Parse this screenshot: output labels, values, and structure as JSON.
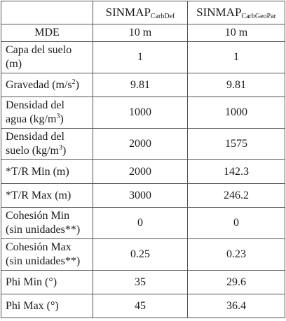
{
  "header": {
    "param": "",
    "col1_main": "SINMAP",
    "col1_sub": "CarbDef",
    "col2_main": "SINMAP",
    "col2_sub": "CarbGeoPar"
  },
  "rows": [
    {
      "label": "MDE",
      "v1": "10 m",
      "v2": "10 m"
    },
    {
      "label": "Capa del suelo (m)",
      "v1": "1",
      "v2": "1"
    },
    {
      "label_pre": "Gravedad (m/s",
      "label_sup": "2",
      "label_post": ")",
      "v1": "9.81",
      "v2": "9.81"
    },
    {
      "label_pre": "Densidad del agua (kg/m",
      "label_sup": "3",
      "label_post": ")",
      "v1": "1000",
      "v2": "1000"
    },
    {
      "label_pre": "Densidad del suelo (kg/m",
      "label_sup": "3",
      "label_post": ")",
      "v1": "2000",
      "v2": "1575"
    },
    {
      "label": "*T/R Min (m)",
      "v1": "2000",
      "v2": "142.3"
    },
    {
      "label": "*T/R Max (m)",
      "v1": "3000",
      "v2": "246.2"
    },
    {
      "label": "Cohesión Min (sin unidades**)",
      "v1": "0",
      "v2": "0"
    },
    {
      "label": "Cohesión Max (sin unidades**)",
      "v1": "0.25",
      "v2": "0.23"
    },
    {
      "label": "Phi Min (°)",
      "v1": "35",
      "v2": "29.6"
    },
    {
      "label": "Phi Max (°)",
      "v1": "45",
      "v2": "36.4"
    }
  ]
}
